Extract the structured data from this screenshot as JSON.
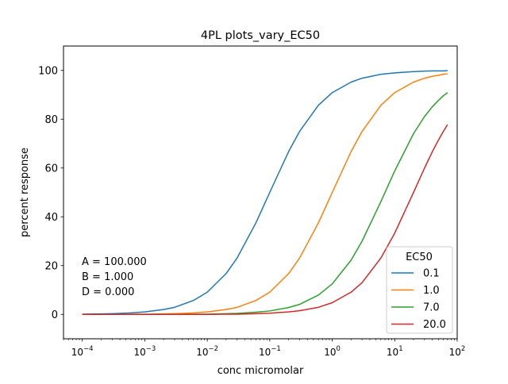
{
  "chart_data": {
    "type": "line",
    "title": "4PL plots_vary_EC50",
    "xlabel": "conc micromolar",
    "ylabel": "percent response",
    "x_scale": "log",
    "xlim": [
      5e-05,
      100
    ],
    "ylim": [
      -10,
      110
    ],
    "x_ticks": [
      {
        "value": 0.0001,
        "base": "10",
        "exp": "−4"
      },
      {
        "value": 0.001,
        "base": "10",
        "exp": "−3"
      },
      {
        "value": 0.01,
        "base": "10",
        "exp": "−2"
      },
      {
        "value": 0.1,
        "base": "10",
        "exp": "−1"
      },
      {
        "value": 1,
        "base": "10",
        "exp": "0"
      },
      {
        "value": 10,
        "base": "10",
        "exp": "1"
      },
      {
        "value": 100,
        "base": "10",
        "exp": "2"
      }
    ],
    "y_ticks": [
      0,
      20,
      40,
      60,
      80,
      100
    ],
    "grid": false,
    "legend": {
      "title": "EC50",
      "position": "bottom-right"
    },
    "annotations": [
      "A = 100.000",
      "B = 1.000",
      "D = 0.000"
    ],
    "x": [
      0.0001,
      0.0002,
      0.0003,
      0.0006,
      0.001,
      0.002,
      0.003,
      0.006,
      0.01,
      0.02,
      0.03,
      0.06,
      0.1,
      0.2,
      0.3,
      0.6,
      1,
      2,
      3,
      6,
      10,
      20,
      30,
      40,
      50,
      60,
      70
    ],
    "series": [
      {
        "name": "0.1",
        "color": "#1f77b4",
        "values": [
          0.1,
          0.2,
          0.3,
          0.6,
          1.0,
          2.0,
          2.9,
          5.7,
          9.1,
          16.7,
          23.1,
          37.5,
          50.0,
          66.7,
          75.0,
          85.7,
          90.9,
          95.2,
          96.8,
          98.4,
          99.0,
          99.5,
          99.7,
          99.8,
          99.8,
          99.8,
          99.9
        ]
      },
      {
        "name": "1.0",
        "color": "#ff7f0e",
        "values": [
          0.0,
          0.0,
          0.0,
          0.1,
          0.1,
          0.2,
          0.3,
          0.6,
          1.0,
          2.0,
          2.9,
          5.7,
          9.1,
          16.7,
          23.1,
          37.5,
          50.0,
          66.7,
          75.0,
          85.7,
          90.9,
          95.2,
          96.8,
          97.6,
          98.0,
          98.4,
          98.6
        ]
      },
      {
        "name": "7.0",
        "color": "#2ca02c",
        "values": [
          0.0,
          0.0,
          0.0,
          0.0,
          0.0,
          0.0,
          0.0,
          0.1,
          0.1,
          0.3,
          0.4,
          0.9,
          1.4,
          2.8,
          4.1,
          7.9,
          12.5,
          22.2,
          30.0,
          46.2,
          58.8,
          74.1,
          81.1,
          85.1,
          87.7,
          89.6,
          90.9
        ]
      },
      {
        "name": "20.0",
        "color": "#d62728",
        "values": [
          0.0,
          0.0,
          0.0,
          0.0,
          0.0,
          0.0,
          0.0,
          0.0,
          0.0,
          0.1,
          0.1,
          0.3,
          0.5,
          1.0,
          1.5,
          2.9,
          4.8,
          9.1,
          13.0,
          23.1,
          33.3,
          50.0,
          60.0,
          66.7,
          71.4,
          75.0,
          77.8
        ]
      }
    ]
  }
}
